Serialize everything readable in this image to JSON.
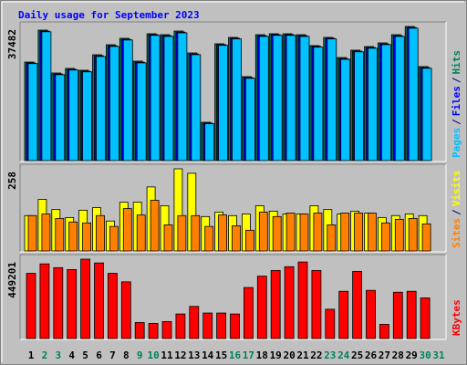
{
  "chart_data": [
    {
      "type": "bar",
      "title": "Daily usage for September 2023",
      "ylim": [
        0,
        37482
      ],
      "yticks": [
        37482
      ],
      "legend_separator": "/",
      "series": [
        {
          "name": "Hits",
          "color": "#00805C",
          "values": [
            27538,
            36462,
            24478,
            25753,
            25243,
            29577,
            32382,
            34167,
            27793,
            35442,
            35187,
            36207,
            30087,
            10709,
            32637,
            34422,
            23458,
            35187,
            35442,
            35442,
            35187,
            32127,
            34422,
            28812,
            30852,
            31872,
            32892,
            35187,
            37482,
            26263,
            null
          ]
        },
        {
          "name": "Files",
          "color": "#0000FF",
          "values": [
            27300,
            36200,
            24200,
            25500,
            25000,
            29300,
            32100,
            33900,
            27500,
            35200,
            34900,
            35900,
            29800,
            10500,
            32400,
            34200,
            23200,
            34900,
            35200,
            35200,
            34900,
            31900,
            34200,
            28500,
            30600,
            31600,
            32600,
            34900,
            37200,
            26000,
            null
          ]
        },
        {
          "name": "Pages",
          "color": "#00C0FF",
          "values": [
            27100,
            36000,
            24000,
            25300,
            24800,
            29100,
            31900,
            33700,
            27300,
            35000,
            34700,
            35700,
            29600,
            10300,
            32200,
            34000,
            23000,
            34700,
            35000,
            35000,
            34700,
            31700,
            34000,
            28300,
            30400,
            31400,
            32400,
            34700,
            37000,
            25800,
            null
          ]
        }
      ]
    },
    {
      "type": "bar",
      "ylim": [
        0,
        258
      ],
      "yticks": [
        258
      ],
      "legend_separator": "/",
      "series": [
        {
          "name": "Visits",
          "color": "#FFFF00",
          "values": [
            111,
            162,
            130,
            105,
            128,
            136,
            94,
            153,
            153,
            201,
            142,
            258,
            244,
            108,
            122,
            111,
            116,
            142,
            125,
            116,
            116,
            142,
            130,
            116,
            125,
            119,
            105,
            111,
            116,
            111,
            null
          ]
        },
        {
          "name": "Sites",
          "color": "#FF8000",
          "values": [
            111,
            116,
            102,
            91,
            88,
            111,
            77,
            133,
            113,
            159,
            82,
            111,
            111,
            77,
            113,
            79,
            65,
            122,
            108,
            119,
            116,
            119,
            82,
            119,
            119,
            119,
            88,
            99,
            102,
            85,
            null
          ]
        }
      ]
    },
    {
      "type": "bar",
      "ylim": [
        0,
        449201
      ],
      "yticks": [
        449201
      ],
      "categories": [
        "1",
        "2",
        "3",
        "4",
        "5",
        "6",
        "7",
        "8",
        "9",
        "10",
        "11",
        "12",
        "13",
        "14",
        "15",
        "16",
        "17",
        "18",
        "19",
        "20",
        "21",
        "22",
        "23",
        "24",
        "25",
        "26",
        "27",
        "28",
        "29",
        "30",
        "31"
      ],
      "category_colors": [
        "#000000",
        "#00805C",
        "#00805C",
        "#000000",
        "#000000",
        "#000000",
        "#000000",
        "#000000",
        "#00805C",
        "#00805C",
        "#000000",
        "#000000",
        "#000000",
        "#000000",
        "#000000",
        "#00805C",
        "#00805C",
        "#000000",
        "#000000",
        "#000000",
        "#000000",
        "#000000",
        "#00805C",
        "#00805C",
        "#000000",
        "#000000",
        "#000000",
        "#000000",
        "#000000",
        "#00805C",
        "#00805C"
      ],
      "series": [
        {
          "name": "KBytes",
          "color": "#FF0000",
          "values": [
            369000,
            422500,
            401100,
            390400,
            449201,
            427800,
            369000,
            320900,
            90900,
            85600,
            96300,
            139000,
            181800,
            144400,
            144400,
            139000,
            288800,
            353000,
            385100,
            406400,
            433200,
            385100,
            165800,
            267400,
            379700,
            272700,
            80200,
            262000,
            267400,
            230000,
            null
          ]
        }
      ]
    }
  ]
}
